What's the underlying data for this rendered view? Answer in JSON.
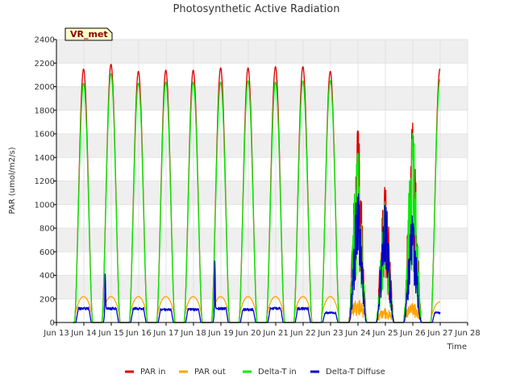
{
  "chart_data": {
    "type": "line",
    "title": "Photosynthetic Active Radiation",
    "xlabel": "Time",
    "ylabel": "PAR (umol/m2/s)",
    "site_label": "VR_met",
    "xlim": [
      13,
      28
    ],
    "ylim": [
      0,
      2400
    ],
    "y_ticks": [
      0,
      200,
      400,
      600,
      800,
      1000,
      1200,
      1400,
      1600,
      1800,
      2000,
      2200,
      2400
    ],
    "x_ticks": [
      13,
      14,
      15,
      16,
      17,
      18,
      19,
      20,
      21,
      22,
      23,
      24,
      25,
      26,
      27,
      28
    ],
    "x_tick_labels": [
      "Jun 13",
      "Jun 14",
      "Jun 15",
      "Jun 16",
      "Jun 17",
      "Jun 18",
      "Jun 19",
      "Jun 20",
      "Jun 21",
      "Jun 22",
      "Jun 23",
      "Jun 24",
      "Jun 25",
      "Jun 26",
      "Jun 27",
      "Jun 28"
    ],
    "data_x_range": [
      13.6,
      27.0
    ],
    "grid": true,
    "legend_position": "bottom",
    "days": [
      13.6,
      14.6,
      15.6,
      16.6,
      17.6,
      18.6,
      19.6,
      20.6,
      21.6,
      22.6,
      23.6,
      24.6,
      25.6,
      26.6
    ],
    "series": [
      {
        "name": "PAR in",
        "color": "#dd0000",
        "daily_peaks": [
          2150,
          2190,
          2130,
          2140,
          2140,
          2160,
          2160,
          2170,
          2170,
          2130,
          1630,
          1150,
          1710,
          2150
        ]
      },
      {
        "name": "PAR out",
        "color": "#ffa500",
        "daily_peaks": [
          220,
          220,
          220,
          220,
          220,
          220,
          220,
          220,
          220,
          220,
          200,
          120,
          170,
          175
        ]
      },
      {
        "name": "Delta-T in",
        "color": "#00ee00",
        "daily_peaks": [
          2030,
          2110,
          2030,
          2040,
          2040,
          2040,
          2050,
          2040,
          2050,
          2050,
          1440,
          1010,
          1620,
          2060
        ]
      },
      {
        "name": "Delta-T Diffuse",
        "color": "#0000cc",
        "daily_peaks": [
          130,
          460,
          130,
          120,
          120,
          570,
          120,
          130,
          130,
          90,
          1130,
          1020,
          970,
          90
        ]
      }
    ]
  }
}
